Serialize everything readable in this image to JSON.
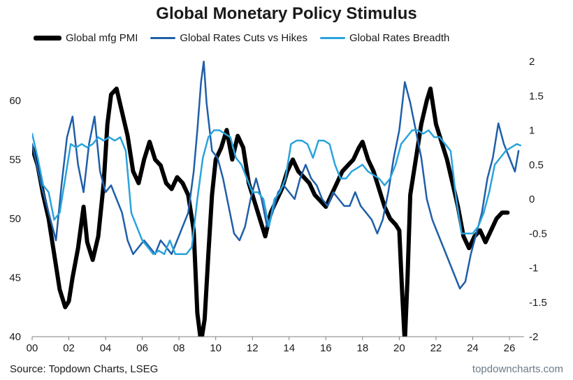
{
  "title": "Global Monetary Policy Stimulus",
  "source": "Source: Topdown Charts, LSEG",
  "brand": "topdowncharts.com",
  "chart_data": {
    "type": "line",
    "x_ticks": [
      "00",
      "02",
      "04",
      "06",
      "08",
      "10",
      "12",
      "14",
      "16",
      "18",
      "20",
      "22",
      "24",
      "26"
    ],
    "x_range": [
      2000,
      2026.8
    ],
    "y_left": {
      "ticks": [
        40,
        45,
        50,
        55,
        60
      ],
      "range": [
        40,
        63.3
      ]
    },
    "y_right": {
      "ticks": [
        -2,
        -1.5,
        -1,
        -0.5,
        0,
        0.5,
        1,
        1.5,
        2
      ],
      "range": [
        -2,
        2
      ]
    },
    "legend_position": "top",
    "grid": false,
    "series": [
      {
        "name": "Global mfg PMI",
        "axis": "left",
        "color": "#000000",
        "width": 6,
        "points": [
          [
            2000.0,
            56.0
          ],
          [
            2000.3,
            54.5
          ],
          [
            2000.6,
            52.0
          ],
          [
            2000.9,
            50.0
          ],
          [
            2001.2,
            47.0
          ],
          [
            2001.5,
            44.0
          ],
          [
            2001.8,
            42.5
          ],
          [
            2002.0,
            43.0
          ],
          [
            2002.2,
            45.0
          ],
          [
            2002.5,
            47.5
          ],
          [
            2002.8,
            51.0
          ],
          [
            2003.0,
            48.0
          ],
          [
            2003.3,
            46.5
          ],
          [
            2003.6,
            48.5
          ],
          [
            2003.9,
            53.0
          ],
          [
            2004.1,
            58.0
          ],
          [
            2004.3,
            60.5
          ],
          [
            2004.6,
            61.0
          ],
          [
            2004.9,
            59.0
          ],
          [
            2005.2,
            57.0
          ],
          [
            2005.5,
            54.0
          ],
          [
            2005.8,
            53.0
          ],
          [
            2006.1,
            55.0
          ],
          [
            2006.4,
            56.5
          ],
          [
            2006.7,
            55.0
          ],
          [
            2007.0,
            54.5
          ],
          [
            2007.3,
            53.0
          ],
          [
            2007.6,
            52.5
          ],
          [
            2007.9,
            53.5
          ],
          [
            2008.2,
            53.0
          ],
          [
            2008.5,
            52.0
          ],
          [
            2008.8,
            49.0
          ],
          [
            2009.0,
            42.0
          ],
          [
            2009.2,
            39.5
          ],
          [
            2009.4,
            41.5
          ],
          [
            2009.6,
            47.0
          ],
          [
            2009.8,
            52.0
          ],
          [
            2010.0,
            55.0
          ],
          [
            2010.3,
            56.0
          ],
          [
            2010.6,
            57.5
          ],
          [
            2010.9,
            55.0
          ],
          [
            2011.2,
            57.0
          ],
          [
            2011.5,
            56.0
          ],
          [
            2011.8,
            53.0
          ],
          [
            2012.1,
            51.5
          ],
          [
            2012.4,
            50.0
          ],
          [
            2012.7,
            48.5
          ],
          [
            2013.0,
            50.5
          ],
          [
            2013.3,
            51.5
          ],
          [
            2013.6,
            52.5
          ],
          [
            2013.9,
            54.0
          ],
          [
            2014.2,
            55.0
          ],
          [
            2014.5,
            54.0
          ],
          [
            2014.8,
            53.5
          ],
          [
            2015.1,
            53.0
          ],
          [
            2015.4,
            52.0
          ],
          [
            2015.7,
            51.5
          ],
          [
            2016.0,
            51.0
          ],
          [
            2016.3,
            52.0
          ],
          [
            2016.6,
            53.0
          ],
          [
            2016.9,
            54.0
          ],
          [
            2017.2,
            54.5
          ],
          [
            2017.5,
            55.0
          ],
          [
            2017.8,
            56.0
          ],
          [
            2018.0,
            56.5
          ],
          [
            2018.3,
            55.0
          ],
          [
            2018.6,
            54.0
          ],
          [
            2018.9,
            52.5
          ],
          [
            2019.2,
            51.0
          ],
          [
            2019.5,
            50.0
          ],
          [
            2019.8,
            49.5
          ],
          [
            2020.0,
            49.0
          ],
          [
            2020.15,
            44.0
          ],
          [
            2020.3,
            39.5
          ],
          [
            2020.45,
            45.0
          ],
          [
            2020.6,
            52.0
          ],
          [
            2020.9,
            55.0
          ],
          [
            2021.2,
            58.0
          ],
          [
            2021.5,
            60.0
          ],
          [
            2021.7,
            61.0
          ],
          [
            2022.0,
            58.0
          ],
          [
            2022.3,
            56.5
          ],
          [
            2022.6,
            55.0
          ],
          [
            2022.9,
            53.0
          ],
          [
            2023.2,
            51.0
          ],
          [
            2023.5,
            48.5
          ],
          [
            2023.8,
            47.5
          ],
          [
            2024.1,
            48.5
          ],
          [
            2024.4,
            49.0
          ],
          [
            2024.7,
            48.0
          ],
          [
            2025.0,
            49.0
          ],
          [
            2025.3,
            50.0
          ],
          [
            2025.6,
            50.5
          ],
          [
            2025.9,
            50.5
          ]
        ]
      },
      {
        "name": "Global Rates Cuts vs Hikes",
        "axis": "right",
        "color": "#1f5fa8",
        "width": 2.5,
        "points": [
          [
            2000.0,
            0.8
          ],
          [
            2000.5,
            0.2
          ],
          [
            2001.0,
            -0.3
          ],
          [
            2001.3,
            -0.6
          ],
          [
            2001.6,
            0.2
          ],
          [
            2001.9,
            0.9
          ],
          [
            2002.2,
            1.2
          ],
          [
            2002.5,
            0.5
          ],
          [
            2002.8,
            0.1
          ],
          [
            2003.1,
            0.8
          ],
          [
            2003.4,
            1.2
          ],
          [
            2003.7,
            0.4
          ],
          [
            2004.0,
            0.1
          ],
          [
            2004.3,
            0.2
          ],
          [
            2004.6,
            0.0
          ],
          [
            2004.9,
            -0.2
          ],
          [
            2005.2,
            -0.6
          ],
          [
            2005.5,
            -0.8
          ],
          [
            2005.8,
            -0.7
          ],
          [
            2006.1,
            -0.6
          ],
          [
            2006.4,
            -0.7
          ],
          [
            2006.7,
            -0.8
          ],
          [
            2007.0,
            -0.6
          ],
          [
            2007.3,
            -0.7
          ],
          [
            2007.6,
            -0.8
          ],
          [
            2007.9,
            -0.6
          ],
          [
            2008.2,
            -0.4
          ],
          [
            2008.5,
            -0.2
          ],
          [
            2008.8,
            0.4
          ],
          [
            2009.0,
            1.0
          ],
          [
            2009.2,
            1.7
          ],
          [
            2009.35,
            2.0
          ],
          [
            2009.5,
            1.4
          ],
          [
            2009.8,
            0.7
          ],
          [
            2010.1,
            0.6
          ],
          [
            2010.4,
            0.3
          ],
          [
            2010.7,
            -0.1
          ],
          [
            2011.0,
            -0.5
          ],
          [
            2011.3,
            -0.6
          ],
          [
            2011.6,
            -0.4
          ],
          [
            2011.9,
            0.0
          ],
          [
            2012.2,
            0.3
          ],
          [
            2012.5,
            0.0
          ],
          [
            2012.8,
            -0.4
          ],
          [
            2013.1,
            -0.2
          ],
          [
            2013.4,
            0.1
          ],
          [
            2013.7,
            0.2
          ],
          [
            2014.0,
            0.1
          ],
          [
            2014.3,
            0.0
          ],
          [
            2014.6,
            0.3
          ],
          [
            2014.9,
            0.5
          ],
          [
            2015.2,
            0.3
          ],
          [
            2015.5,
            0.2
          ],
          [
            2015.8,
            0.0
          ],
          [
            2016.1,
            -0.1
          ],
          [
            2016.4,
            0.1
          ],
          [
            2016.7,
            0.0
          ],
          [
            2017.0,
            -0.1
          ],
          [
            2017.3,
            -0.1
          ],
          [
            2017.6,
            0.1
          ],
          [
            2017.9,
            -0.1
          ],
          [
            2018.2,
            -0.2
          ],
          [
            2018.5,
            -0.3
          ],
          [
            2018.8,
            -0.5
          ],
          [
            2019.1,
            -0.3
          ],
          [
            2019.4,
            0.1
          ],
          [
            2019.7,
            0.6
          ],
          [
            2020.0,
            1.0
          ],
          [
            2020.3,
            1.7
          ],
          [
            2020.6,
            1.4
          ],
          [
            2020.9,
            1.0
          ],
          [
            2021.2,
            0.6
          ],
          [
            2021.5,
            0.0
          ],
          [
            2021.8,
            -0.3
          ],
          [
            2022.1,
            -0.5
          ],
          [
            2022.4,
            -0.7
          ],
          [
            2022.7,
            -0.9
          ],
          [
            2023.0,
            -1.1
          ],
          [
            2023.3,
            -1.3
          ],
          [
            2023.6,
            -1.2
          ],
          [
            2023.9,
            -0.8
          ],
          [
            2024.2,
            -0.5
          ],
          [
            2024.5,
            -0.2
          ],
          [
            2024.8,
            0.3
          ],
          [
            2025.1,
            0.6
          ],
          [
            2025.4,
            1.1
          ],
          [
            2025.7,
            0.8
          ],
          [
            2026.0,
            0.6
          ],
          [
            2026.3,
            0.4
          ],
          [
            2026.5,
            0.7
          ]
        ]
      },
      {
        "name": "Global Rates Breadth",
        "axis": "right",
        "color": "#2aa3dc",
        "width": 2.5,
        "points": [
          [
            2000.0,
            0.95
          ],
          [
            2000.3,
            0.6
          ],
          [
            2000.6,
            0.2
          ],
          [
            2000.9,
            0.1
          ],
          [
            2001.2,
            -0.3
          ],
          [
            2001.5,
            -0.2
          ],
          [
            2001.8,
            0.3
          ],
          [
            2002.1,
            0.8
          ],
          [
            2002.4,
            0.75
          ],
          [
            2002.7,
            0.8
          ],
          [
            2003.0,
            0.75
          ],
          [
            2003.3,
            0.8
          ],
          [
            2003.6,
            0.9
          ],
          [
            2003.9,
            0.85
          ],
          [
            2004.2,
            0.9
          ],
          [
            2004.5,
            0.85
          ],
          [
            2004.8,
            0.9
          ],
          [
            2005.1,
            0.7
          ],
          [
            2005.4,
            -0.2
          ],
          [
            2005.7,
            -0.4
          ],
          [
            2006.0,
            -0.6
          ],
          [
            2006.3,
            -0.7
          ],
          [
            2006.6,
            -0.8
          ],
          [
            2006.9,
            -0.75
          ],
          [
            2007.2,
            -0.8
          ],
          [
            2007.5,
            -0.6
          ],
          [
            2007.8,
            -0.8
          ],
          [
            2008.1,
            -0.8
          ],
          [
            2008.4,
            -0.8
          ],
          [
            2008.7,
            -0.7
          ],
          [
            2009.0,
            0.0
          ],
          [
            2009.3,
            0.6
          ],
          [
            2009.6,
            0.9
          ],
          [
            2009.9,
            1.0
          ],
          [
            2010.2,
            1.0
          ],
          [
            2010.5,
            0.95
          ],
          [
            2010.8,
            0.9
          ],
          [
            2011.1,
            0.6
          ],
          [
            2011.4,
            0.5
          ],
          [
            2011.7,
            0.3
          ],
          [
            2012.0,
            0.1
          ],
          [
            2012.3,
            0.1
          ],
          [
            2012.6,
            0.0
          ],
          [
            2012.9,
            -0.4
          ],
          [
            2013.2,
            0.0
          ],
          [
            2013.5,
            0.1
          ],
          [
            2013.8,
            0.3
          ],
          [
            2014.1,
            0.8
          ],
          [
            2014.4,
            0.85
          ],
          [
            2014.7,
            0.85
          ],
          [
            2015.0,
            0.8
          ],
          [
            2015.3,
            0.6
          ],
          [
            2015.6,
            0.85
          ],
          [
            2015.9,
            0.85
          ],
          [
            2016.2,
            0.8
          ],
          [
            2016.5,
            0.5
          ],
          [
            2016.8,
            0.3
          ],
          [
            2017.1,
            0.3
          ],
          [
            2017.4,
            0.4
          ],
          [
            2017.7,
            0.45
          ],
          [
            2018.0,
            0.5
          ],
          [
            2018.3,
            0.4
          ],
          [
            2018.6,
            0.35
          ],
          [
            2018.9,
            0.3
          ],
          [
            2019.2,
            0.2
          ],
          [
            2019.5,
            0.3
          ],
          [
            2019.8,
            0.5
          ],
          [
            2020.1,
            0.8
          ],
          [
            2020.4,
            0.9
          ],
          [
            2020.7,
            1.0
          ],
          [
            2021.0,
            1.0
          ],
          [
            2021.3,
            0.95
          ],
          [
            2021.6,
            1.0
          ],
          [
            2021.9,
            0.9
          ],
          [
            2022.2,
            0.9
          ],
          [
            2022.5,
            0.8
          ],
          [
            2022.8,
            0.7
          ],
          [
            2023.1,
            0.0
          ],
          [
            2023.4,
            -0.5
          ],
          [
            2023.7,
            -0.5
          ],
          [
            2024.0,
            -0.5
          ],
          [
            2024.3,
            -0.4
          ],
          [
            2024.6,
            -0.2
          ],
          [
            2024.9,
            0.1
          ],
          [
            2025.2,
            0.5
          ],
          [
            2025.5,
            0.6
          ],
          [
            2025.8,
            0.7
          ],
          [
            2026.1,
            0.75
          ],
          [
            2026.4,
            0.8
          ],
          [
            2026.6,
            0.78
          ]
        ]
      }
    ]
  }
}
